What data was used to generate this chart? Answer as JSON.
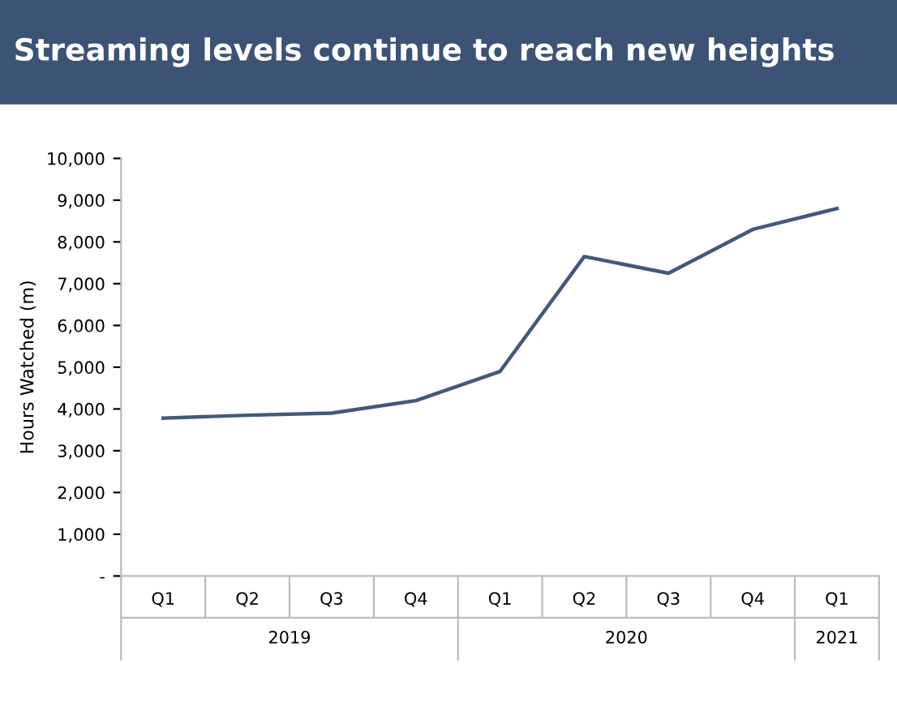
{
  "chart_data": {
    "type": "line",
    "title": "Streaming levels continue to reach new heights",
    "ylabel": "Hours Watched (m)",
    "categories": [
      "Q1",
      "Q2",
      "Q3",
      "Q4",
      "Q1",
      "Q2",
      "Q3",
      "Q4",
      "Q1"
    ],
    "series": [
      {
        "color": "#44587a",
        "values": [
          3780,
          3850,
          3900,
          4200,
          4900,
          7650,
          7250,
          8300,
          8800
        ]
      }
    ],
    "ylim": [
      0,
      10000
    ],
    "yticks": [
      {
        "value": 0,
        "label": "-"
      },
      {
        "value": 1000,
        "label": "1,000"
      },
      {
        "value": 2000,
        "label": "2,000"
      },
      {
        "value": 3000,
        "label": "3,000"
      },
      {
        "value": 4000,
        "label": "4,000"
      },
      {
        "value": 5000,
        "label": "5,000"
      },
      {
        "value": 6000,
        "label": "6,000"
      },
      {
        "value": 7000,
        "label": "7,000"
      },
      {
        "value": 8000,
        "label": "8,000"
      },
      {
        "value": 9000,
        "label": "9,000"
      },
      {
        "value": 10000,
        "label": "10,000"
      }
    ],
    "annotations": [
      "2019",
      "2020",
      "2021"
    ],
    "grid": false,
    "legend": false,
    "marker": "none",
    "line_style": "solid"
  }
}
